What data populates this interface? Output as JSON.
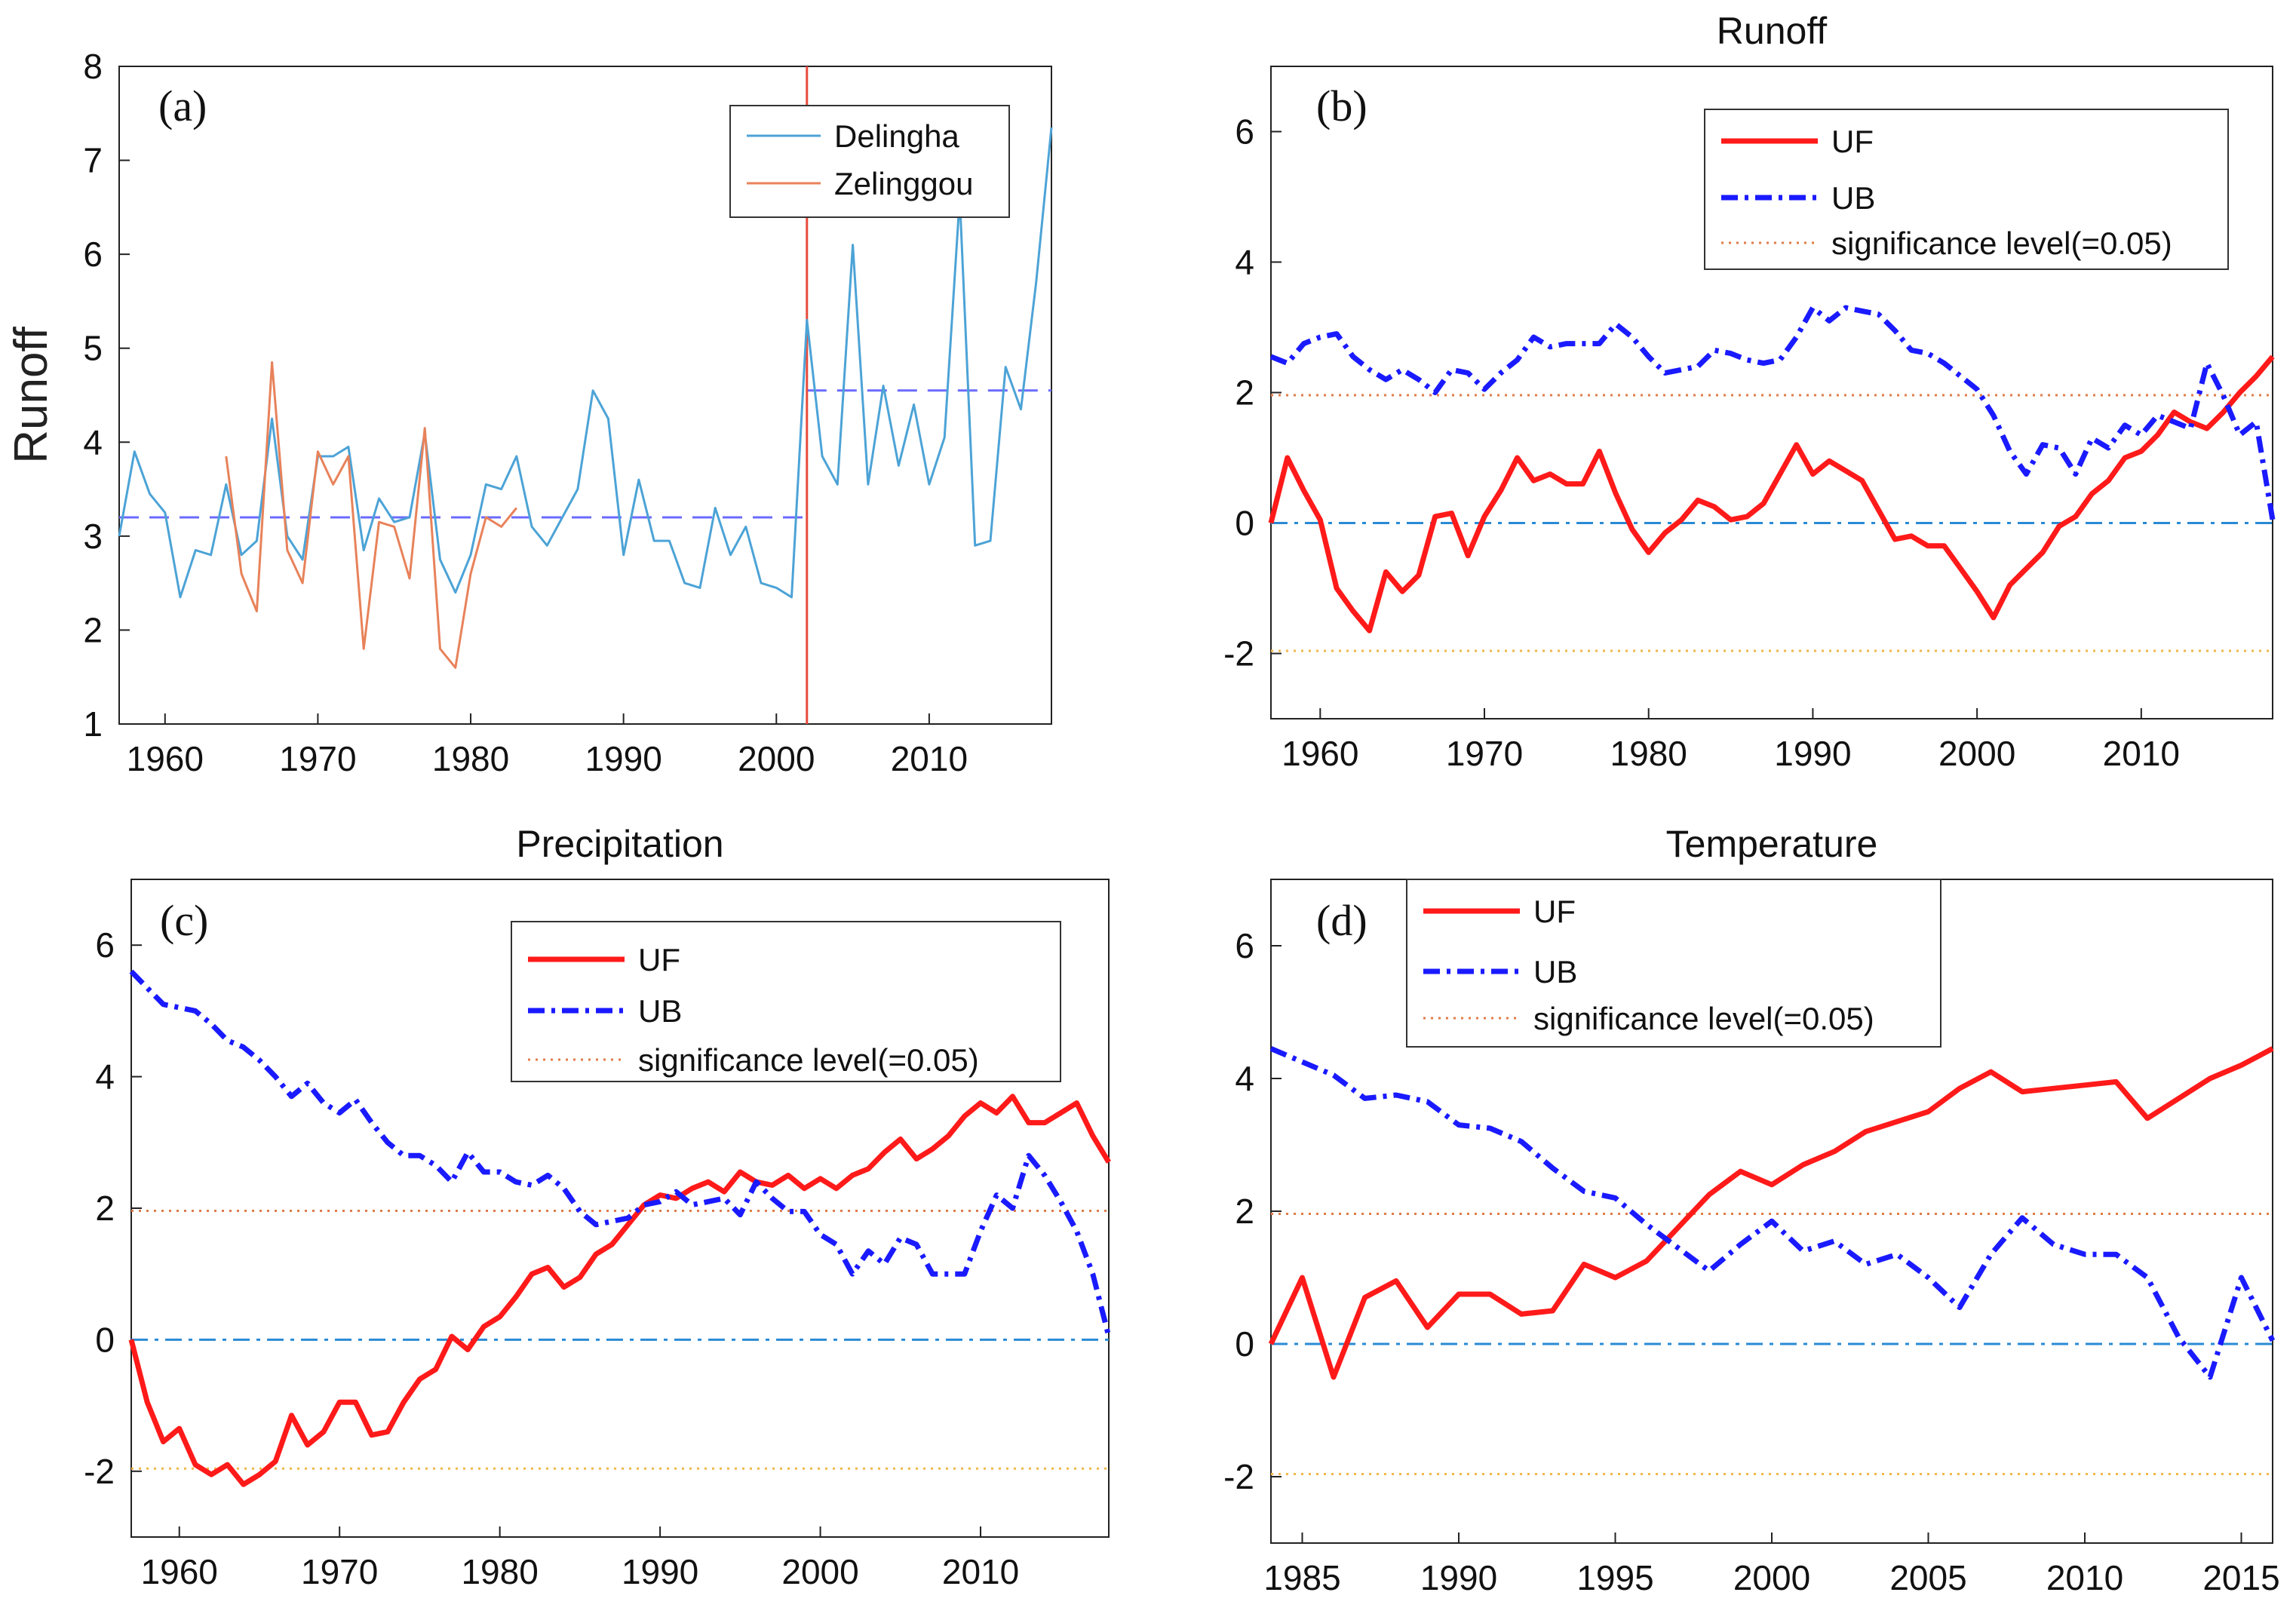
{
  "chart_data": [
    {
      "panel": "(a)",
      "type": "line",
      "title": "",
      "xlabel": "",
      "ylabel": "Runoff",
      "xlim": [
        1957,
        2018
      ],
      "ylim": [
        1,
        8
      ],
      "xticks": [
        1960,
        1970,
        1980,
        1990,
        2000,
        2010
      ],
      "yticks": [
        1,
        2,
        3,
        4,
        5,
        6,
        7,
        8
      ],
      "legend": "top-right",
      "series": [
        {
          "name": "Delingha",
          "color": "#4ca3d6",
          "x": [
            1957,
            1958,
            1959,
            1960,
            1961,
            1962,
            1963,
            1964,
            1965,
            1966,
            1967,
            1968,
            1969,
            1970,
            1971,
            1972,
            1973,
            1974,
            1975,
            1976,
            1977,
            1978,
            1979,
            1980,
            1981,
            1982,
            1983,
            1984,
            1985,
            1986,
            1987,
            1988,
            1989,
            1990,
            1991,
            1992,
            1993,
            1994,
            1995,
            1996,
            1997,
            1998,
            1999,
            2000,
            2001,
            2002,
            2003,
            2004,
            2005,
            2006,
            2007,
            2008,
            2009,
            2010,
            2011,
            2012,
            2013,
            2014,
            2015,
            2016,
            2017,
            2018
          ],
          "values": [
            3.0,
            3.9,
            3.45,
            3.25,
            2.35,
            2.85,
            2.8,
            3.55,
            2.8,
            2.95,
            4.25,
            3.0,
            2.75,
            3.85,
            3.85,
            3.95,
            2.85,
            3.4,
            3.15,
            3.2,
            4.1,
            2.75,
            2.4,
            2.8,
            3.55,
            3.5,
            3.85,
            3.1,
            2.9,
            3.2,
            3.5,
            4.55,
            4.25,
            2.8,
            3.6,
            2.95,
            2.95,
            2.5,
            2.45,
            3.3,
            2.8,
            3.1,
            2.5,
            2.45,
            2.35,
            5.3,
            3.85,
            3.55,
            6.1,
            3.55,
            4.6,
            3.75,
            4.4,
            3.55,
            4.05,
            6.6,
            2.9,
            2.95,
            4.8,
            4.35,
            5.7,
            7.35
          ]
        },
        {
          "name": "Zelinggou",
          "color": "#e8825a",
          "x": [
            1964,
            1965,
            1966,
            1967,
            1968,
            1969,
            1970,
            1971,
            1972,
            1973,
            1974,
            1975,
            1976,
            1977,
            1978,
            1979,
            1980,
            1981,
            1982,
            1983
          ],
          "values": [
            3.85,
            2.6,
            2.2,
            4.85,
            2.85,
            2.5,
            3.9,
            3.55,
            3.85,
            1.8,
            3.15,
            3.1,
            2.55,
            4.15,
            1.8,
            1.6,
            2.6,
            3.2,
            3.1,
            3.3
          ]
        }
      ],
      "reference_lines": [
        {
          "kind": "horizontal-segment",
          "x": [
            1957,
            2002
          ],
          "y": 3.2,
          "color": "#6b6bff",
          "style": "dashed"
        },
        {
          "kind": "horizontal-segment",
          "x": [
            2002,
            2018
          ],
          "y": 4.55,
          "color": "#6b6bff",
          "style": "dashed"
        },
        {
          "kind": "vertical",
          "x": 2002,
          "color": "#e84b3c",
          "style": "solid"
        }
      ]
    },
    {
      "panel": "(b)",
      "type": "line",
      "title": "Runoff",
      "xlabel": "",
      "ylabel": "",
      "xlim": [
        1957,
        2018
      ],
      "ylim": [
        -3,
        7
      ],
      "xticks": [
        1960,
        1970,
        1980,
        1990,
        2000,
        2010
      ],
      "yticks": [
        -2,
        0,
        2,
        4,
        6
      ],
      "legend": "top-right",
      "series": [
        {
          "name": "UF",
          "color": "#ff1a1a",
          "style": "solid",
          "x": [
            1957,
            1958,
            1959,
            1960,
            1961,
            1962,
            1963,
            1964,
            1965,
            1966,
            1967,
            1968,
            1969,
            1970,
            1971,
            1972,
            1973,
            1974,
            1975,
            1976,
            1977,
            1978,
            1979,
            1980,
            1981,
            1982,
            1983,
            1984,
            1985,
            1986,
            1987,
            1988,
            1989,
            1990,
            1991,
            1992,
            1993,
            1994,
            1995,
            1996,
            1997,
            1998,
            1999,
            2000,
            2001,
            2002,
            2003,
            2004,
            2005,
            2006,
            2007,
            2008,
            2009,
            2010,
            2011,
            2012,
            2013,
            2014,
            2015,
            2016,
            2017,
            2018
          ],
          "values": [
            0.0,
            1.0,
            0.5,
            0.05,
            -1.0,
            -1.35,
            -1.65,
            -0.75,
            -1.05,
            -0.8,
            0.1,
            0.15,
            -0.5,
            0.1,
            0.5,
            1.0,
            0.65,
            0.75,
            0.6,
            0.6,
            1.1,
            0.45,
            -0.1,
            -0.45,
            -0.15,
            0.05,
            0.35,
            0.25,
            0.05,
            0.1,
            0.3,
            0.75,
            1.2,
            0.75,
            0.95,
            0.8,
            0.65,
            0.2,
            -0.25,
            -0.2,
            -0.35,
            -0.35,
            -0.7,
            -1.05,
            -1.45,
            -0.95,
            -0.7,
            -0.45,
            -0.05,
            0.1,
            0.45,
            0.65,
            1.0,
            1.1,
            1.35,
            1.7,
            1.55,
            1.45,
            1.7,
            2.0,
            2.25,
            2.55
          ]
        },
        {
          "name": "UB",
          "color": "#1a1aff",
          "style": "dashdot",
          "x": [
            1957,
            1958,
            1959,
            1960,
            1961,
            1962,
            1963,
            1964,
            1965,
            1966,
            1967,
            1968,
            1969,
            1970,
            1971,
            1972,
            1973,
            1974,
            1975,
            1976,
            1977,
            1978,
            1979,
            1980,
            1981,
            1982,
            1983,
            1984,
            1985,
            1986,
            1987,
            1988,
            1989,
            1990,
            1991,
            1992,
            1993,
            1994,
            1995,
            1996,
            1997,
            1998,
            1999,
            2000,
            2001,
            2002,
            2003,
            2004,
            2005,
            2006,
            2007,
            2008,
            2009,
            2010,
            2011,
            2012,
            2013,
            2014,
            2015,
            2016,
            2017,
            2018
          ],
          "values": [
            2.55,
            2.45,
            2.75,
            2.85,
            2.9,
            2.55,
            2.35,
            2.2,
            2.35,
            2.2,
            2.0,
            2.35,
            2.3,
            2.05,
            2.3,
            2.5,
            2.85,
            2.7,
            2.75,
            2.75,
            2.75,
            3.05,
            2.85,
            2.55,
            2.3,
            2.35,
            2.4,
            2.65,
            2.6,
            2.5,
            2.45,
            2.5,
            2.85,
            3.3,
            3.1,
            3.3,
            3.25,
            3.2,
            2.95,
            2.65,
            2.6,
            2.45,
            2.25,
            2.05,
            1.65,
            1.1,
            0.75,
            1.2,
            1.15,
            0.75,
            1.3,
            1.15,
            1.5,
            1.35,
            1.65,
            1.55,
            1.45,
            2.45,
            1.95,
            1.35,
            1.55,
            0.05
          ]
        }
      ],
      "reference_lines": [
        {
          "kind": "horizontal",
          "y": 1.96,
          "color": "#e07b4a",
          "style": "dotted"
        },
        {
          "kind": "horizontal",
          "y": -1.96,
          "color": "#f0b74a",
          "style": "dotted"
        },
        {
          "kind": "horizontal",
          "y": 0,
          "color": "#2a8ad4",
          "style": "dashdot"
        }
      ],
      "legend_entries": [
        "UF",
        "UB",
        "significance level(=0.05)"
      ]
    },
    {
      "panel": "(c)",
      "type": "line",
      "title": "Precipitation",
      "xlabel": "",
      "ylabel": "",
      "xlim": [
        1957,
        2018
      ],
      "ylim": [
        -3,
        7
      ],
      "xticks": [
        1960,
        1970,
        1980,
        1990,
        2000,
        2010
      ],
      "yticks": [
        -2,
        0,
        2,
        4,
        6
      ],
      "legend": "top-right",
      "series": [
        {
          "name": "UF",
          "color": "#ff1a1a",
          "style": "solid",
          "x": [
            1957,
            1958,
            1959,
            1960,
            1961,
            1962,
            1963,
            1964,
            1965,
            1966,
            1967,
            1968,
            1969,
            1970,
            1971,
            1972,
            1973,
            1974,
            1975,
            1976,
            1977,
            1978,
            1979,
            1980,
            1981,
            1982,
            1983,
            1984,
            1985,
            1986,
            1987,
            1988,
            1989,
            1990,
            1991,
            1992,
            1993,
            1994,
            1995,
            1996,
            1997,
            1998,
            1999,
            2000,
            2001,
            2002,
            2003,
            2004,
            2005,
            2006,
            2007,
            2008,
            2009,
            2010,
            2011,
            2012,
            2013,
            2014,
            2015,
            2016,
            2017,
            2018
          ],
          "values": [
            0.0,
            -0.95,
            -1.55,
            -1.35,
            -1.9,
            -2.05,
            -1.9,
            -2.2,
            -2.05,
            -1.85,
            -1.15,
            -1.6,
            -1.4,
            -0.95,
            -0.95,
            -1.45,
            -1.4,
            -0.95,
            -0.6,
            -0.45,
            0.05,
            -0.15,
            0.2,
            0.35,
            0.65,
            1.0,
            1.1,
            0.8,
            0.95,
            1.3,
            1.45,
            1.75,
            2.05,
            2.2,
            2.15,
            2.3,
            2.4,
            2.25,
            2.55,
            2.4,
            2.35,
            2.5,
            2.3,
            2.45,
            2.3,
            2.5,
            2.6,
            2.85,
            3.05,
            2.75,
            2.9,
            3.1,
            3.4,
            3.6,
            3.45,
            3.7,
            3.3,
            3.3,
            3.45,
            3.6,
            3.1,
            2.7
          ]
        },
        {
          "name": "UB",
          "color": "#1a1aff",
          "style": "dashdot",
          "x": [
            1957,
            1958,
            1959,
            1960,
            1961,
            1962,
            1963,
            1964,
            1965,
            1966,
            1967,
            1968,
            1969,
            1970,
            1971,
            1972,
            1973,
            1974,
            1975,
            1976,
            1977,
            1978,
            1979,
            1980,
            1981,
            1982,
            1983,
            1984,
            1985,
            1986,
            1987,
            1988,
            1989,
            1990,
            1991,
            1992,
            1993,
            1994,
            1995,
            1996,
            1997,
            1998,
            1999,
            2000,
            2001,
            2002,
            2003,
            2004,
            2005,
            2006,
            2007,
            2008,
            2009,
            2010,
            2011,
            2012,
            2013,
            2014,
            2015,
            2016,
            2017,
            2018
          ],
          "values": [
            5.6,
            5.35,
            5.1,
            5.05,
            5.0,
            4.8,
            4.55,
            4.45,
            4.25,
            4.0,
            3.7,
            3.9,
            3.6,
            3.45,
            3.65,
            3.3,
            3.0,
            2.8,
            2.8,
            2.65,
            2.4,
            2.85,
            2.55,
            2.55,
            2.4,
            2.35,
            2.5,
            2.3,
            1.95,
            1.75,
            1.8,
            1.85,
            2.05,
            2.1,
            2.25,
            2.05,
            2.1,
            2.15,
            1.9,
            2.4,
            2.15,
            1.95,
            1.95,
            1.6,
            1.45,
            1.0,
            1.35,
            1.15,
            1.55,
            1.45,
            1.0,
            1.0,
            1.0,
            1.65,
            2.2,
            2.0,
            2.8,
            2.5,
            2.1,
            1.65,
            1.0,
            0.05
          ]
        }
      ],
      "reference_lines": [
        {
          "kind": "horizontal",
          "y": 1.96,
          "color": "#e07b4a",
          "style": "dotted"
        },
        {
          "kind": "horizontal",
          "y": -1.96,
          "color": "#f0b74a",
          "style": "dotted"
        },
        {
          "kind": "horizontal",
          "y": 0,
          "color": "#2a8ad4",
          "style": "dashdot"
        }
      ],
      "legend_entries": [
        "UF",
        "UB",
        "significance level(=0.05)"
      ]
    },
    {
      "panel": "(d)",
      "type": "line",
      "title": "Temperature",
      "xlabel": "",
      "ylabel": "",
      "xlim": [
        1984,
        2016
      ],
      "ylim": [
        -3,
        7
      ],
      "xticks": [
        1985,
        1990,
        1995,
        2000,
        2005,
        2010,
        2015
      ],
      "yticks": [
        -2,
        0,
        2,
        4,
        6
      ],
      "legend": "top-left",
      "series": [
        {
          "name": "UF",
          "color": "#ff1a1a",
          "style": "solid",
          "x": [
            1984,
            1985,
            1986,
            1987,
            1988,
            1989,
            1990,
            1991,
            1992,
            1993,
            1994,
            1995,
            1996,
            1997,
            1998,
            1999,
            2000,
            2001,
            2002,
            2003,
            2004,
            2005,
            2006,
            2007,
            2008,
            2009,
            2010,
            2011,
            2012,
            2013,
            2014,
            2015,
            2016
          ],
          "values": [
            0.0,
            1.0,
            -0.5,
            0.7,
            0.95,
            0.25,
            0.75,
            0.75,
            0.45,
            0.5,
            1.2,
            1.0,
            1.25,
            1.75,
            2.25,
            2.6,
            2.4,
            2.7,
            2.9,
            3.2,
            3.35,
            3.5,
            3.85,
            4.1,
            3.8,
            3.85,
            3.9,
            3.95,
            3.4,
            3.7,
            4.0,
            4.2,
            4.45
          ]
        },
        {
          "name": "UB",
          "color": "#1a1aff",
          "style": "dashdot",
          "x": [
            1984,
            1985,
            1986,
            1987,
            1988,
            1989,
            1990,
            1991,
            1992,
            1993,
            1994,
            1995,
            1996,
            1997,
            1998,
            1999,
            2000,
            2001,
            2002,
            2003,
            2004,
            2005,
            2006,
            2007,
            2008,
            2009,
            2010,
            2011,
            2012,
            2013,
            2014,
            2015,
            2016
          ],
          "values": [
            4.45,
            4.25,
            4.05,
            3.7,
            3.75,
            3.65,
            3.3,
            3.25,
            3.05,
            2.65,
            2.3,
            2.2,
            1.8,
            1.45,
            1.1,
            1.5,
            1.85,
            1.4,
            1.55,
            1.2,
            1.35,
            1.0,
            0.55,
            1.35,
            1.9,
            1.5,
            1.35,
            1.35,
            1.0,
            0.1,
            -0.5,
            1.0,
            0.05
          ]
        }
      ],
      "reference_lines": [
        {
          "kind": "horizontal",
          "y": 1.96,
          "color": "#e07b4a",
          "style": "dotted"
        },
        {
          "kind": "horizontal",
          "y": -1.96,
          "color": "#f0b74a",
          "style": "dotted"
        },
        {
          "kind": "horizontal",
          "y": 0,
          "color": "#2a8ad4",
          "style": "dashdot"
        }
      ],
      "legend_entries": [
        "UF",
        "UB",
        "significance level(=0.05)"
      ]
    }
  ]
}
